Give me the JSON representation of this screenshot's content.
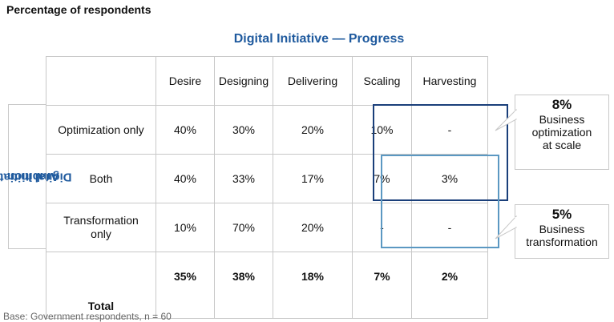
{
  "heading": "Percentage of respondents",
  "top_title": "Digital Initiative — Progress",
  "side_title_line1": "Digital Initiative —",
  "side_title_line2": "Ambition",
  "colors": {
    "title_blue": "#1f5a9e",
    "dark_box": "#1a3f7a",
    "light_box": "#5b98c2",
    "grid": "#c8c8c8"
  },
  "chart_data": {
    "type": "table",
    "columns": [
      "Desire",
      "Designing",
      "Delivering",
      "Scaling",
      "Harvesting"
    ],
    "rows": [
      {
        "label": "Optimization only",
        "values": [
          "40%",
          "30%",
          "20%",
          "10%",
          "-"
        ]
      },
      {
        "label": "Both",
        "values": [
          "40%",
          "33%",
          "17%",
          "7%",
          "3%"
        ]
      },
      {
        "label": "Transformation only",
        "values": [
          "10%",
          "70%",
          "20%",
          "-",
          "-"
        ]
      },
      {
        "label": "Total",
        "values": [
          "35%",
          "38%",
          "18%",
          "7%",
          "2%"
        ]
      }
    ]
  },
  "callouts": [
    {
      "pct": "8%",
      "line1": "Business",
      "line2": "optimization",
      "line3": "at scale"
    },
    {
      "pct": "5%",
      "line1": "Business",
      "line2": "transformation"
    }
  ],
  "footnote": "Base: Government respondents, n = 60"
}
